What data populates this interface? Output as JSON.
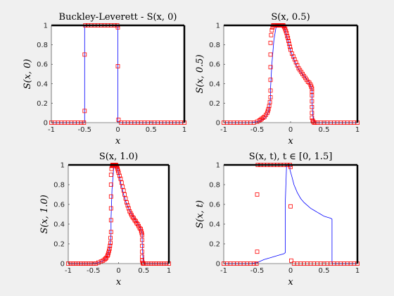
{
  "figure": {
    "background": "#f0f0f0"
  },
  "colors": {
    "line": "#0000ff",
    "marker": "#ff0000",
    "axis": "#262626"
  },
  "chart_data": [
    {
      "type": "line",
      "title": "Buckley-Leverett - S(x, 0)",
      "xlabel": "x",
      "ylabel": "S(x, 0)",
      "xlim": [
        -1,
        1
      ],
      "ylim": [
        0,
        1
      ],
      "xticks": [
        -1,
        -0.5,
        0,
        0.5,
        1
      ],
      "xticklabels": [
        "-1",
        "-0.5",
        "0",
        "0.5",
        "1"
      ],
      "yticks": [
        0,
        0.2,
        0.4,
        0.6,
        0.8,
        1
      ],
      "yticklabels": [
        "0",
        "0.2",
        "0.4",
        "0.6",
        "0.8",
        "1"
      ],
      "line": {
        "x": [
          -1,
          -0.5,
          -0.5,
          0,
          0,
          1
        ],
        "y": [
          0,
          0,
          1,
          1,
          0,
          0
        ]
      },
      "markers": {
        "x": [
          -1,
          -0.95,
          -0.9,
          -0.85,
          -0.8,
          -0.75,
          -0.7,
          -0.65,
          -0.6,
          -0.55,
          -0.51,
          -0.5,
          -0.5,
          -0.49,
          -0.45,
          -0.4,
          -0.35,
          -0.3,
          -0.25,
          -0.2,
          -0.15,
          -0.1,
          -0.05,
          -0.01,
          0,
          0,
          0.01,
          0.05,
          0.1,
          0.15,
          0.2,
          0.25,
          0.3,
          0.35,
          0.4,
          0.45,
          0.5,
          0.55,
          0.6,
          0.65,
          0.7,
          0.75,
          0.8,
          0.85,
          0.9,
          0.95,
          1
        ],
        "y": [
          0,
          0,
          0,
          0,
          0,
          0,
          0,
          0,
          0,
          0,
          0,
          0.12,
          0.7,
          1,
          1,
          1,
          1,
          1,
          1,
          1,
          1,
          1,
          1,
          1,
          0.98,
          0.58,
          0.03,
          0,
          0,
          0,
          0,
          0,
          0,
          0,
          0,
          0,
          0,
          0,
          0,
          0,
          0,
          0,
          0,
          0,
          0,
          0,
          0
        ]
      }
    },
    {
      "type": "line",
      "title": "S(x, 0.5)",
      "xlabel": "x",
      "ylabel": "S(x, 0.5)",
      "xlim": [
        -1,
        1
      ],
      "ylim": [
        0,
        1
      ],
      "xticks": [
        -1,
        -0.5,
        0,
        0.5,
        1
      ],
      "xticklabels": [
        "-1",
        "-0.5",
        "0",
        "0.5",
        "1"
      ],
      "yticks": [
        0,
        0.2,
        0.4,
        0.6,
        0.8,
        1
      ],
      "yticklabels": [
        "0",
        "0.2",
        "0.4",
        "0.6",
        "0.8",
        "1"
      ],
      "line": {
        "x": [
          -1,
          -0.6,
          -0.5,
          -0.45,
          -0.4,
          -0.37,
          -0.35,
          -0.33,
          -0.32,
          -0.31,
          -0.3,
          -0.3,
          -0.28,
          -0.25,
          -0.22,
          -0.2,
          -0.18,
          -0.15,
          -0.12,
          -0.1,
          -0.08,
          -0.05,
          0,
          0.05,
          0.1,
          0.15,
          0.2,
          0.25,
          0.28,
          0.3,
          0.31,
          0.32,
          0.32,
          0.33,
          0.34,
          0.36,
          1
        ],
        "y": [
          0,
          0,
          0.01,
          0.02,
          0.04,
          0.06,
          0.09,
          0.12,
          0.16,
          0.2,
          0.25,
          0.35,
          0.6,
          0.85,
          0.97,
          1,
          1,
          1,
          1,
          0.99,
          0.95,
          0.87,
          0.74,
          0.65,
          0.57,
          0.52,
          0.48,
          0.44,
          0.41,
          0.38,
          0.36,
          0.34,
          0.25,
          0.1,
          0.03,
          0,
          0
        ]
      },
      "markers": {
        "x": [
          -1,
          -0.95,
          -0.9,
          -0.85,
          -0.8,
          -0.75,
          -0.7,
          -0.65,
          -0.6,
          -0.55,
          -0.5,
          -0.47,
          -0.45,
          -0.43,
          -0.41,
          -0.39,
          -0.37,
          -0.35,
          -0.34,
          -0.33,
          -0.32,
          -0.31,
          -0.3,
          -0.3,
          -0.3,
          -0.3,
          -0.3,
          -0.3,
          -0.29,
          -0.28,
          -0.27,
          -0.26,
          -0.25,
          -0.24,
          -0.23,
          -0.22,
          -0.21,
          -0.2,
          -0.19,
          -0.18,
          -0.17,
          -0.16,
          -0.15,
          -0.14,
          -0.13,
          -0.12,
          -0.11,
          -0.1,
          -0.09,
          -0.08,
          -0.07,
          -0.06,
          -0.05,
          -0.04,
          -0.03,
          -0.02,
          -0.01,
          0,
          0.02,
          0.04,
          0.06,
          0.08,
          0.1,
          0.12,
          0.14,
          0.16,
          0.18,
          0.2,
          0.22,
          0.24,
          0.26,
          0.28,
          0.3,
          0.31,
          0.32,
          0.32,
          0.32,
          0.32,
          0.32,
          0.32,
          0.32,
          0.33,
          0.34,
          0.35,
          0.37,
          0.4,
          0.45,
          0.5,
          0.55,
          0.6,
          0.65,
          0.7,
          0.75,
          0.8,
          0.85,
          0.9,
          0.95,
          1
        ],
        "y": [
          0,
          0,
          0,
          0,
          0,
          0,
          0,
          0,
          0,
          0,
          0.01,
          0.02,
          0.03,
          0.04,
          0.05,
          0.06,
          0.08,
          0.1,
          0.12,
          0.14,
          0.17,
          0.21,
          0.26,
          0.33,
          0.44,
          0.57,
          0.7,
          0.82,
          0.9,
          0.95,
          0.98,
          1,
          1,
          1,
          1,
          1,
          1,
          1,
          1,
          1,
          1,
          1,
          1,
          1,
          1,
          1,
          1,
          0.99,
          0.98,
          0.96,
          0.94,
          0.92,
          0.89,
          0.87,
          0.84,
          0.81,
          0.78,
          0.75,
          0.71,
          0.68,
          0.65,
          0.62,
          0.59,
          0.56,
          0.54,
          0.52,
          0.5,
          0.48,
          0.46,
          0.44,
          0.42,
          0.41,
          0.39,
          0.37,
          0.35,
          0.32,
          0.28,
          0.22,
          0.16,
          0.1,
          0.05,
          0.02,
          0.01,
          0,
          0,
          0,
          0,
          0,
          0,
          0,
          0,
          0,
          0,
          0,
          0,
          0,
          0,
          0
        ]
      }
    },
    {
      "type": "line",
      "title": "S(x, 1.0)",
      "xlabel": "x",
      "ylabel": "S(x, 1.0)",
      "xlim": [
        -1,
        1
      ],
      "ylim": [
        0,
        1
      ],
      "xticks": [
        -1,
        -0.5,
        0,
        0.5,
        1
      ],
      "xticklabels": [
        "-1",
        "-0.5",
        "0",
        "0.5",
        "1"
      ],
      "yticks": [
        0,
        0.2,
        0.4,
        0.6,
        0.8,
        1
      ],
      "yticklabels": [
        "0",
        "0.2",
        "0.4",
        "0.6",
        "0.8",
        "1"
      ],
      "line": {
        "x": [
          -1,
          -0.5,
          -0.4,
          -0.3,
          -0.25,
          -0.22,
          -0.2,
          -0.18,
          -0.17,
          -0.16,
          -0.15,
          -0.15,
          -0.13,
          -0.1,
          -0.08,
          -0.05,
          -0.03,
          0,
          0.03,
          0.05,
          0.1,
          0.15,
          0.2,
          0.25,
          0.3,
          0.35,
          0.4,
          0.43,
          0.45,
          0.46,
          0.47,
          0.47,
          0.48,
          0.49,
          0.5,
          1
        ],
        "y": [
          0,
          0,
          0.01,
          0.03,
          0.05,
          0.08,
          0.11,
          0.15,
          0.19,
          0.24,
          0.3,
          0.45,
          0.75,
          0.95,
          1,
          1,
          0.98,
          0.92,
          0.85,
          0.8,
          0.7,
          0.62,
          0.56,
          0.51,
          0.47,
          0.43,
          0.39,
          0.36,
          0.34,
          0.32,
          0.3,
          0.22,
          0.1,
          0.03,
          0,
          0
        ]
      },
      "markers": {
        "x": [
          -1,
          -0.95,
          -0.9,
          -0.85,
          -0.8,
          -0.75,
          -0.7,
          -0.65,
          -0.6,
          -0.55,
          -0.5,
          -0.45,
          -0.4,
          -0.35,
          -0.31,
          -0.28,
          -0.26,
          -0.24,
          -0.22,
          -0.21,
          -0.2,
          -0.19,
          -0.18,
          -0.17,
          -0.16,
          -0.16,
          -0.15,
          -0.15,
          -0.15,
          -0.15,
          -0.15,
          -0.15,
          -0.14,
          -0.13,
          -0.12,
          -0.11,
          -0.1,
          -0.09,
          -0.08,
          -0.07,
          -0.06,
          -0.05,
          -0.04,
          -0.03,
          -0.02,
          -0.01,
          0,
          0.02,
          0.04,
          0.06,
          0.08,
          0.1,
          0.12,
          0.14,
          0.16,
          0.18,
          0.2,
          0.22,
          0.24,
          0.26,
          0.28,
          0.3,
          0.32,
          0.34,
          0.36,
          0.38,
          0.4,
          0.42,
          0.44,
          0.45,
          0.46,
          0.47,
          0.47,
          0.47,
          0.47,
          0.47,
          0.47,
          0.48,
          0.49,
          0.5,
          0.55,
          0.6,
          0.65,
          0.7,
          0.75,
          0.8,
          0.85,
          0.9,
          0.95,
          1
        ],
        "y": [
          0,
          0,
          0,
          0,
          0,
          0,
          0,
          0,
          0,
          0,
          0,
          0,
          0.01,
          0.02,
          0.03,
          0.04,
          0.05,
          0.06,
          0.08,
          0.09,
          0.11,
          0.13,
          0.15,
          0.18,
          0.21,
          0.26,
          0.32,
          0.44,
          0.56,
          0.68,
          0.8,
          0.9,
          0.96,
          0.99,
          1,
          1,
          1,
          1,
          1,
          1,
          1,
          1,
          0.99,
          0.98,
          0.96,
          0.94,
          0.92,
          0.89,
          0.86,
          0.82,
          0.78,
          0.74,
          0.7,
          0.66,
          0.62,
          0.59,
          0.56,
          0.53,
          0.51,
          0.49,
          0.47,
          0.46,
          0.44,
          0.43,
          0.41,
          0.4,
          0.38,
          0.36,
          0.35,
          0.33,
          0.31,
          0.29,
          0.24,
          0.18,
          0.12,
          0.07,
          0.03,
          0.01,
          0,
          0,
          0,
          0,
          0,
          0,
          0,
          0,
          0,
          0,
          0,
          0
        ]
      }
    },
    {
      "type": "line",
      "title": "S(x, t), t ∈ [0, 1.5]",
      "xlabel": "x",
      "ylabel": "S(x, t)",
      "xlim": [
        -1,
        1
      ],
      "ylim": [
        0,
        1
      ],
      "xticks": [
        -1,
        -0.5,
        0,
        0.5,
        1
      ],
      "xticklabels": [
        "-1",
        "-0.5",
        "0",
        "0.5",
        "1"
      ],
      "yticks": [
        0,
        0.2,
        0.4,
        0.6,
        0.8,
        1
      ],
      "yticklabels": [
        "0",
        "0.2",
        "0.4",
        "0.6",
        "0.8",
        "1"
      ],
      "line": {
        "x": [
          -1,
          -0.6,
          -0.5,
          -0.4,
          -0.3,
          -0.2,
          -0.1,
          -0.08,
          -0.08,
          -0.06,
          -0.04,
          -0.02,
          -0.01,
          -0.01,
          0.02,
          0.05,
          0.1,
          0.15,
          0.2,
          0.25,
          0.3,
          0.35,
          0.4,
          0.45,
          0.5,
          0.55,
          0.6,
          0.62,
          0.62,
          1
        ],
        "y": [
          0,
          0,
          0.01,
          0.04,
          0.06,
          0.08,
          0.1,
          0.11,
          0.6,
          1,
          1,
          1,
          1,
          0.95,
          0.88,
          0.8,
          0.72,
          0.66,
          0.62,
          0.59,
          0.56,
          0.54,
          0.52,
          0.5,
          0.48,
          0.47,
          0.46,
          0.45,
          0,
          0
        ]
      },
      "markers": {
        "x": [
          -1,
          -0.95,
          -0.9,
          -0.85,
          -0.8,
          -0.75,
          -0.7,
          -0.65,
          -0.6,
          -0.55,
          -0.51,
          -0.5,
          -0.5,
          -0.49,
          -0.45,
          -0.4,
          -0.35,
          -0.3,
          -0.25,
          -0.2,
          -0.15,
          -0.1,
          -0.05,
          -0.01,
          0,
          0,
          0.01,
          0.05,
          0.1,
          0.15,
          0.2,
          0.25,
          0.3,
          0.35,
          0.4,
          0.45,
          0.5,
          0.55,
          0.6,
          0.65,
          0.7,
          0.75,
          0.8,
          0.85,
          0.9,
          0.95,
          1
        ],
        "y": [
          0,
          0,
          0,
          0,
          0,
          0,
          0,
          0,
          0,
          0,
          0,
          0.12,
          0.7,
          1,
          1,
          1,
          1,
          1,
          1,
          1,
          1,
          1,
          1,
          1,
          0.98,
          0.58,
          0.03,
          0,
          0,
          0,
          0,
          0,
          0,
          0,
          0,
          0,
          0,
          0,
          0,
          0,
          0,
          0,
          0,
          0,
          0,
          0,
          0
        ]
      }
    }
  ]
}
